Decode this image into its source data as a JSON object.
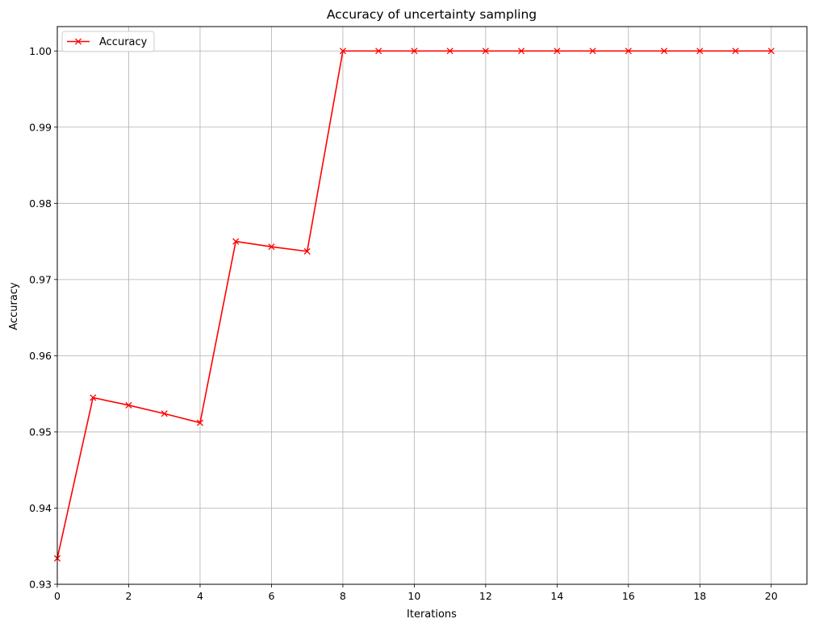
{
  "chart_data": {
    "type": "line",
    "title": "Accuracy of uncertainty sampling",
    "xlabel": "Iterations",
    "ylabel": "Accuracy",
    "xlim": [
      0,
      21
    ],
    "ylim": [
      0.93,
      1.0032
    ],
    "xticks": [
      0,
      2,
      4,
      6,
      8,
      10,
      12,
      14,
      16,
      18,
      20
    ],
    "xtick_labels": [
      "0",
      "2",
      "4",
      "6",
      "8",
      "10",
      "12",
      "14",
      "16",
      "18",
      "20"
    ],
    "yticks": [
      0.93,
      0.94,
      0.95,
      0.96,
      0.97,
      0.98,
      0.99,
      1.0
    ],
    "ytick_labels": [
      "0.93",
      "0.94",
      "0.95",
      "0.96",
      "0.97",
      "0.98",
      "0.99",
      "1.00"
    ],
    "grid": true,
    "legend_position": "top-left",
    "series": [
      {
        "name": "Accuracy",
        "color": "#ff0000",
        "marker": "x",
        "x": [
          0,
          1,
          2,
          3,
          4,
          5,
          6,
          7,
          8,
          9,
          10,
          11,
          12,
          13,
          14,
          15,
          16,
          17,
          18,
          19,
          20
        ],
        "y": [
          0.9334,
          0.9545,
          0.9535,
          0.9524,
          0.9512,
          0.975,
          0.9743,
          0.9737,
          1.0,
          1.0,
          1.0,
          1.0,
          1.0,
          1.0,
          1.0,
          1.0,
          1.0,
          1.0,
          1.0,
          1.0,
          1.0
        ]
      }
    ]
  }
}
